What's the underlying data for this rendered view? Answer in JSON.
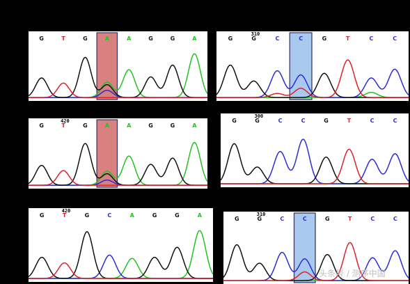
{
  "colors": {
    "A": "#22c322",
    "C": "#2b2bd8",
    "G": "#111111",
    "T": "#e0202a"
  },
  "watermark": "头条号 / 测序中国",
  "chart_data": [
    {
      "type": "line",
      "panel": "top-left",
      "position_label": "",
      "highlight_color": "#d98080",
      "bases": [
        {
          "call": "G",
          "peaks": {
            "G": 0.38
          }
        },
        {
          "call": "T",
          "peaks": {
            "T": 0.28
          }
        },
        {
          "call": "G",
          "peaks": {
            "G": 0.78
          }
        },
        {
          "call": "A",
          "highlight": true,
          "peaks": {
            "A": 0.3,
            "G": 0.25,
            "C": 0.14
          }
        },
        {
          "call": "A",
          "peaks": {
            "A": 0.54
          }
        },
        {
          "call": "G",
          "peaks": {
            "G": 0.4
          }
        },
        {
          "call": "G",
          "peaks": {
            "G": 0.63
          }
        },
        {
          "call": "A",
          "peaks": {
            "A": 0.85
          }
        }
      ]
    },
    {
      "type": "line",
      "panel": "top-right",
      "position_label": "310",
      "highlight_color": "#a9c9ef",
      "bases": [
        {
          "call": "G",
          "peaks": {
            "G": 0.63
          }
        },
        {
          "call": "G",
          "peaks": {
            "G": 0.32
          }
        },
        {
          "call": "C",
          "peaks": {
            "C": 0.52,
            "T": 0.08
          }
        },
        {
          "call": "C",
          "highlight": true,
          "peaks": {
            "C": 0.44,
            "T": 0.18
          }
        },
        {
          "call": "G",
          "peaks": {
            "G": 0.47
          }
        },
        {
          "call": "T",
          "peaks": {
            "T": 0.73
          }
        },
        {
          "call": "C",
          "peaks": {
            "C": 0.38,
            "A": 0.1
          }
        },
        {
          "call": "C",
          "peaks": {
            "C": 0.55
          }
        }
      ]
    },
    {
      "type": "line",
      "panel": "middle-left",
      "position_label": "420",
      "highlight_color": "#d98080",
      "bases": [
        {
          "call": "G",
          "peaks": {
            "G": 0.38
          }
        },
        {
          "call": "T",
          "peaks": {
            "T": 0.28
          }
        },
        {
          "call": "G",
          "peaks": {
            "G": 0.8
          }
        },
        {
          "call": "A",
          "highlight": true,
          "peaks": {
            "A": 0.27,
            "G": 0.22,
            "C": 0.1
          }
        },
        {
          "call": "A",
          "peaks": {
            "A": 0.56
          }
        },
        {
          "call": "G",
          "peaks": {
            "G": 0.4
          }
        },
        {
          "call": "G",
          "peaks": {
            "G": 0.52
          }
        },
        {
          "call": "A",
          "peaks": {
            "A": 0.82
          }
        }
      ]
    },
    {
      "type": "line",
      "panel": "middle-right",
      "position_label": "300",
      "highlight_color": null,
      "bases": [
        {
          "call": "G",
          "peaks": {
            "G": 0.72
          }
        },
        {
          "call": "G",
          "peaks": {
            "G": 0.3
          }
        },
        {
          "call": "C",
          "peaks": {
            "C": 0.58
          }
        },
        {
          "call": "C",
          "peaks": {
            "C": 0.8
          }
        },
        {
          "call": "G",
          "peaks": {
            "G": 0.48
          }
        },
        {
          "call": "T",
          "peaks": {
            "T": 0.62
          }
        },
        {
          "call": "C",
          "peaks": {
            "C": 0.44
          }
        },
        {
          "call": "C",
          "peaks": {
            "C": 0.54
          }
        }
      ]
    },
    {
      "type": "line",
      "panel": "bottom-left",
      "position_label": "420",
      "highlight_color": null,
      "bases": [
        {
          "call": "G",
          "peaks": {
            "G": 0.38
          }
        },
        {
          "call": "T",
          "peaks": {
            "T": 0.28
          }
        },
        {
          "call": "G",
          "peaks": {
            "G": 0.84
          }
        },
        {
          "call": "C",
          "peaks": {
            "C": 0.42
          }
        },
        {
          "call": "A",
          "peaks": {
            "A": 0.36
          }
        },
        {
          "call": "G",
          "peaks": {
            "G": 0.38
          }
        },
        {
          "call": "G",
          "peaks": {
            "G": 0.56
          }
        },
        {
          "call": "A",
          "peaks": {
            "A": 0.86
          }
        }
      ]
    },
    {
      "type": "line",
      "panel": "bottom-right",
      "position_label": "310",
      "highlight_color": "#a9c9ef",
      "bases": [
        {
          "call": "G",
          "peaks": {
            "G": 0.66
          }
        },
        {
          "call": "G",
          "peaks": {
            "G": 0.32
          }
        },
        {
          "call": "C",
          "peaks": {
            "C": 0.52
          }
        },
        {
          "call": "C",
          "highlight": true,
          "peaks": {
            "C": 0.4,
            "T": 0.16
          }
        },
        {
          "call": "G",
          "peaks": {
            "G": 0.48
          }
        },
        {
          "call": "T",
          "peaks": {
            "T": 0.7
          }
        },
        {
          "call": "C",
          "peaks": {
            "C": 0.42
          }
        },
        {
          "call": "C",
          "peaks": {
            "C": 0.55
          }
        }
      ]
    }
  ]
}
